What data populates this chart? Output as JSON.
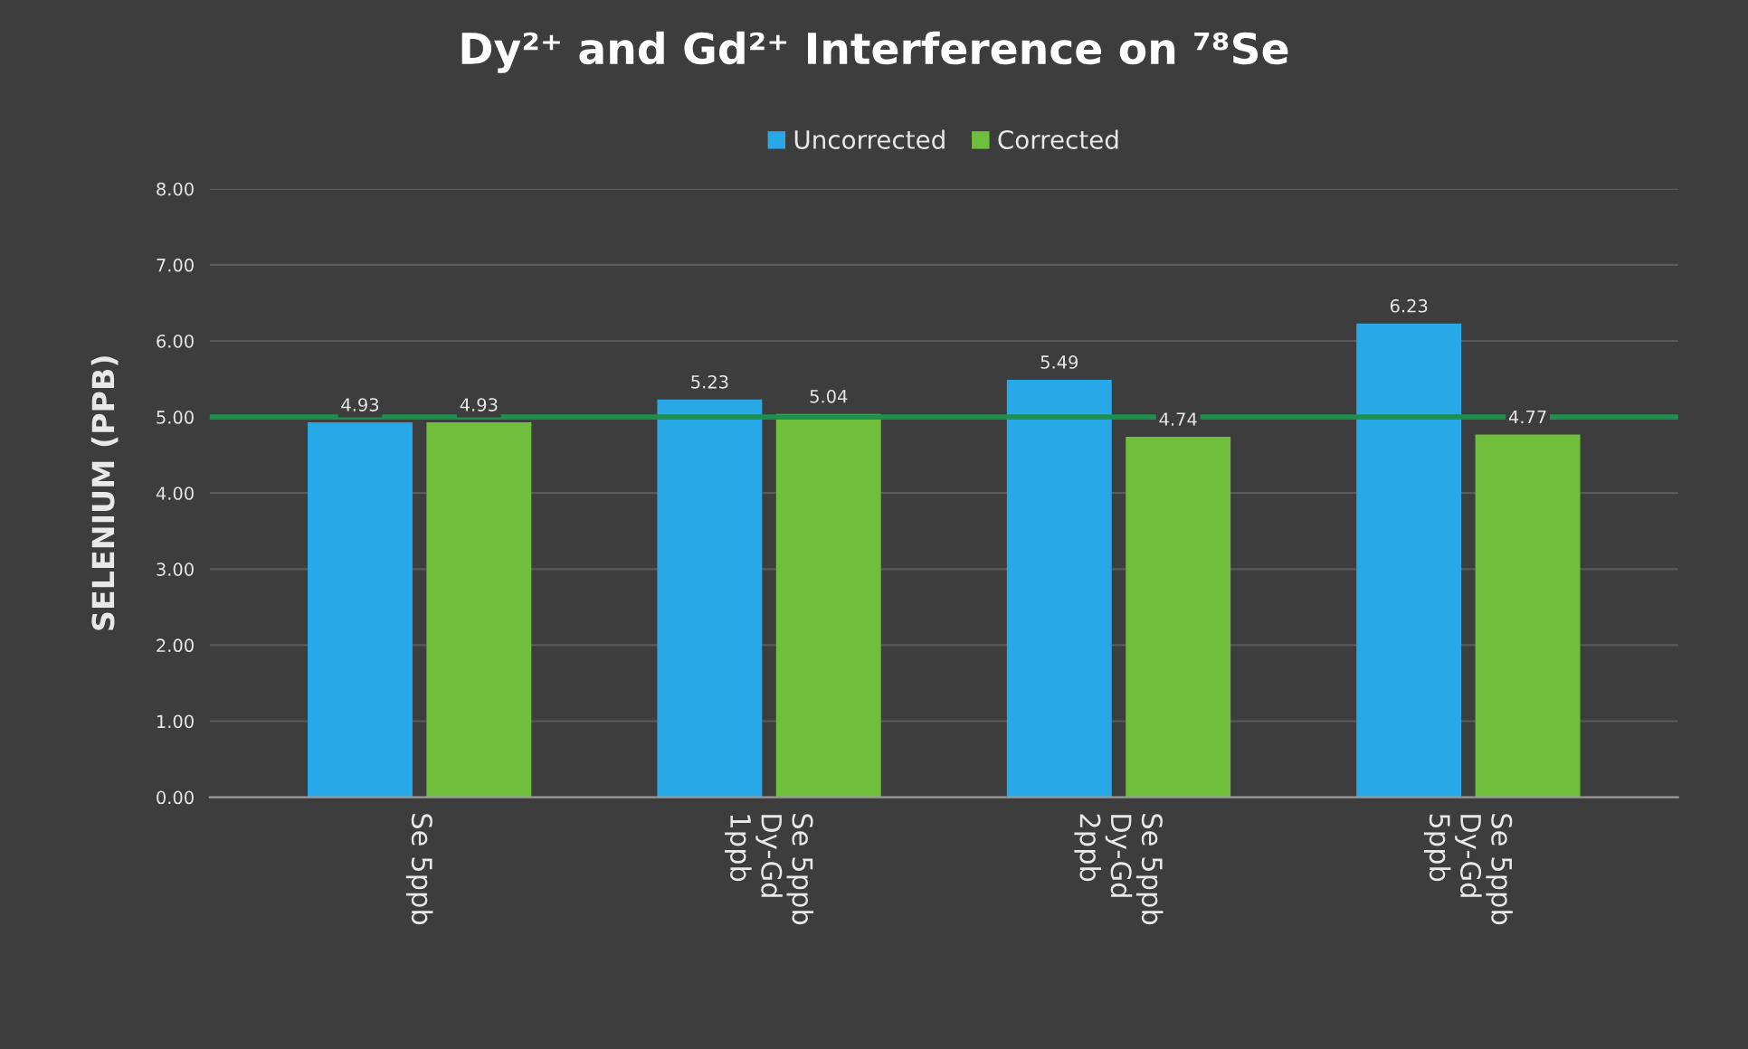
{
  "chart_data": {
    "type": "bar",
    "title": "Dy²⁺ and Gd²⁺ Interference on ⁷⁸Se",
    "ylabel": "SELENIUM (PPB)",
    "categories": [
      "Se 5ppb",
      "Se 5ppb\nDy-Gd\n1ppb",
      "Se 5ppb\nDy-Gd\n2ppb",
      "Se 5ppb\nDy-Gd\n5ppb"
    ],
    "series": [
      {
        "name": "Uncorrected",
        "color": "#29a8e8",
        "values": [
          4.93,
          5.23,
          5.49,
          6.23
        ]
      },
      {
        "name": "Corrected",
        "color": "#6fbf3c",
        "values": [
          4.93,
          5.04,
          4.74,
          4.77
        ]
      }
    ],
    "ylim": [
      0,
      8
    ],
    "yticks": [
      {
        "value": 0,
        "label": "0.00"
      },
      {
        "value": 1,
        "label": "1.00"
      },
      {
        "value": 2,
        "label": "2.00"
      },
      {
        "value": 3,
        "label": "3.00"
      },
      {
        "value": 4,
        "label": "4.00"
      },
      {
        "value": 5,
        "label": "5.00"
      },
      {
        "value": 6,
        "label": "6.00"
      },
      {
        "value": 7,
        "label": "7.00"
      },
      {
        "value": 8,
        "label": "8.00"
      }
    ],
    "ref_lines": [
      {
        "axis": "y",
        "value": 5,
        "color": "#1e8f4e"
      }
    ],
    "grid": "y",
    "legend": "top",
    "data_labels": true
  }
}
